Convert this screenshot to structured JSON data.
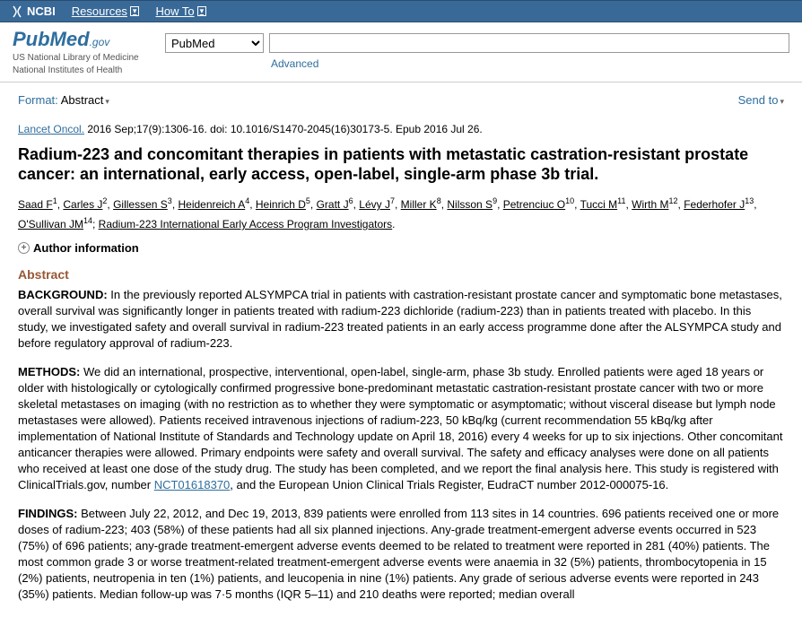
{
  "ncbi": {
    "brand": "NCBI",
    "resources": "Resources",
    "howto": "How To"
  },
  "header": {
    "logo_main": "PubMed",
    "logo_suffix": ".gov",
    "subtitle1": "US National Library of Medicine",
    "subtitle2": "National Institutes of Health",
    "db_selected": "PubMed",
    "search_value": "",
    "advanced": "Advanced"
  },
  "toolbar": {
    "format_label": "Format:",
    "format_value": "Abstract",
    "sendto": "Send to"
  },
  "citation": {
    "journal": "Lancet Oncol.",
    "rest": " 2016 Sep;17(9):1306-16. doi: 10.1016/S1470-2045(16)30173-5. Epub 2016 Jul 26."
  },
  "article": {
    "title": "Radium-223 and concomitant therapies in patients with metastatic castration-resistant prostate cancer: an international, early access, open-label, single-arm phase 3b trial.",
    "authors": [
      {
        "n": "Saad F",
        "s": "1"
      },
      {
        "n": "Carles J",
        "s": "2"
      },
      {
        "n": "Gillessen S",
        "s": "3"
      },
      {
        "n": "Heidenreich A",
        "s": "4"
      },
      {
        "n": "Heinrich D",
        "s": "5"
      },
      {
        "n": "Gratt J",
        "s": "6"
      },
      {
        "n": "Lévy J",
        "s": "7"
      },
      {
        "n": "Miller K",
        "s": "8"
      },
      {
        "n": "Nilsson S",
        "s": "9"
      },
      {
        "n": "Petrenciuc O",
        "s": "10"
      },
      {
        "n": "Tucci M",
        "s": "11"
      },
      {
        "n": "Wirth M",
        "s": "12"
      },
      {
        "n": "Federhofer J",
        "s": "13"
      },
      {
        "n": "O'Sullivan JM",
        "s": "14"
      }
    ],
    "group": "Radium-223 International Early Access Program Investigators",
    "author_info_toggle": "Author information",
    "abstract_heading": "Abstract",
    "background_label": "BACKGROUND:",
    "background_text": " In the previously reported ALSYMPCA trial in patients with castration-resistant prostate cancer and symptomatic bone metastases, overall survival was significantly longer in patients treated with radium-223 dichloride (radium-223) than in patients treated with placebo. In this study, we investigated safety and overall survival in radium-223 treated patients in an early access programme done after the ALSYMPCA study and before regulatory approval of radium-223.",
    "methods_label": "METHODS:",
    "methods_text_a": " We did an international, prospective, interventional, open-label, single-arm, phase 3b study. Enrolled patients were aged 18 years or older with histologically or cytologically confirmed progressive bone-predominant metastatic castration-resistant prostate cancer with two or more skeletal metastases on imaging (with no restriction as to whether they were symptomatic or asymptomatic; without visceral disease but lymph node metastases were allowed). Patients received intravenous injections of radium-223, 50 kBq/kg (current recommendation 55 kBq/kg after implementation of National Institute of Standards and Technology update on April 18, 2016) every 4 weeks for up to six injections. Other concomitant anticancer therapies were allowed. Primary endpoints were safety and overall survival. The safety and efficacy analyses were done on all patients who received at least one dose of the study drug. The study has been completed, and we report the final analysis here. This study is registered with ClinicalTrials.gov, number ",
    "ct_link": "NCT01618370",
    "methods_text_b": ", and the European Union Clinical Trials Register, EudraCT number 2012-000075-16.",
    "findings_label": "FINDINGS:",
    "findings_text": " Between July 22, 2012, and Dec 19, 2013, 839 patients were enrolled from 113 sites in 14 countries. 696 patients received one or more doses of radium-223; 403 (58%) of these patients had all six planned injections. Any-grade treatment-emergent adverse events occurred in 523 (75%) of 696 patients; any-grade treatment-emergent adverse events deemed to be related to treatment were reported in 281 (40%) patients. The most common grade 3 or worse treatment-related treatment-emergent adverse events were anaemia in 32 (5%) patients, thrombocytopenia in 15 (2%) patients, neutropenia in ten (1%) patients, and leucopenia in nine (1%) patients. Any grade of serious adverse events were reported in 243 (35%) patients. Median follow-up was 7·5 months (IQR 5–11) and 210 deaths were reported; median overall"
  }
}
